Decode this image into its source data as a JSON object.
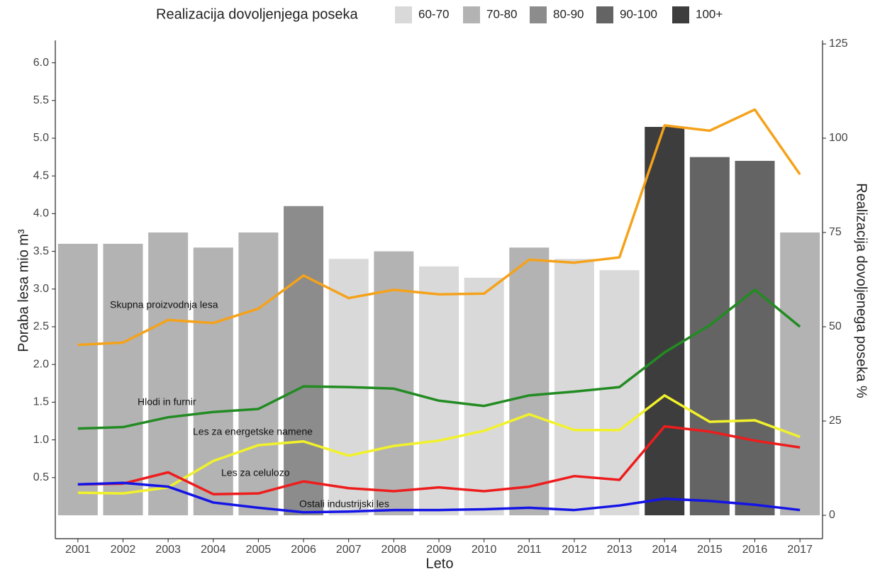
{
  "chart_data": {
    "type": "bar-line",
    "x_label": "Leto",
    "y_label": "Poraba lesa mio m³",
    "y2_label": "Realizacija dovoljenega poseka %",
    "legend": {
      "title": "Realizacija dovoljenjega poseka",
      "position": "top",
      "entries": [
        {
          "label": "60-70",
          "color": "#d9d9d9"
        },
        {
          "label": "70-80",
          "color": "#b3b3b3"
        },
        {
          "label": "80-90",
          "color": "#8c8c8c"
        },
        {
          "label": "90-100",
          "color": "#646464"
        },
        {
          "label": "100+",
          "color": "#3d3d3d"
        }
      ]
    },
    "categories": [
      "2001",
      "2002",
      "2003",
      "2004",
      "2005",
      "2006",
      "2007",
      "2008",
      "2009",
      "2010",
      "2011",
      "2012",
      "2013",
      "2014",
      "2015",
      "2016",
      "2017"
    ],
    "bars": {
      "axis": "y2",
      "values": [
        72,
        72,
        75,
        71,
        75,
        82,
        68,
        70,
        66,
        63,
        71,
        68,
        65,
        103,
        95,
        94,
        75
      ],
      "colors": [
        "#b3b3b3",
        "#b3b3b3",
        "#b3b3b3",
        "#b3b3b3",
        "#b3b3b3",
        "#8c8c8c",
        "#d9d9d9",
        "#b3b3b3",
        "#d9d9d9",
        "#d9d9d9",
        "#b3b3b3",
        "#d9d9d9",
        "#d9d9d9",
        "#3d3d3d",
        "#646464",
        "#646464",
        "#b3b3b3"
      ]
    },
    "series": [
      {
        "name": "Skupna proizvodnja lesa",
        "color": "#f5a21b",
        "values": [
          2.26,
          2.29,
          2.59,
          2.55,
          2.74,
          3.18,
          2.88,
          2.99,
          2.93,
          2.94,
          3.39,
          3.35,
          3.42,
          5.17,
          5.1,
          5.38,
          4.52
        ]
      },
      {
        "name": "Hlodi in furnir",
        "color": "#228b22",
        "values": [
          1.15,
          1.17,
          1.3,
          1.37,
          1.41,
          1.71,
          1.7,
          1.68,
          1.52,
          1.45,
          1.59,
          1.64,
          1.7,
          2.16,
          2.52,
          2.99,
          2.5
        ]
      },
      {
        "name": "Les za energetske namene",
        "color": "#f2f22a",
        "values": [
          0.3,
          0.29,
          0.37,
          0.72,
          0.93,
          0.98,
          0.79,
          0.92,
          0.99,
          1.12,
          1.34,
          1.13,
          1.13,
          1.59,
          1.24,
          1.26,
          1.04
        ]
      },
      {
        "name": "Les za celulozo",
        "color": "#ee1c1c",
        "values": [
          0.41,
          0.42,
          0.57,
          0.28,
          0.29,
          0.45,
          0.36,
          0.32,
          0.37,
          0.32,
          0.38,
          0.52,
          0.47,
          1.18,
          1.11,
          0.99,
          0.9
        ]
      },
      {
        "name": "Ostali industrijski les",
        "color": "#1414e6",
        "values": [
          0.41,
          0.43,
          0.38,
          0.17,
          0.1,
          0.04,
          0.05,
          0.07,
          0.07,
          0.08,
          0.1,
          0.07,
          0.13,
          0.22,
          0.19,
          0.14,
          0.07
        ]
      }
    ],
    "ylim": [
      -0.31,
      6.25
    ],
    "yticks": [
      0.5,
      {
        "value": 1.0,
        "label": "1.0"
      },
      1.5,
      {
        "value": 2.0,
        "label": "2.0"
      },
      2.5,
      {
        "value": 3.0,
        "label": "3.0"
      },
      3.5,
      {
        "value": 4.0,
        "label": "4.0"
      },
      4.5,
      {
        "value": 5.0,
        "label": "5.0"
      },
      5.5,
      {
        "value": 6.0,
        "label": "6.0"
      }
    ],
    "y2lim": [
      -6.2,
      125
    ],
    "y2ticks": [
      0,
      25,
      50,
      75,
      100,
      125
    ],
    "grid": false
  }
}
